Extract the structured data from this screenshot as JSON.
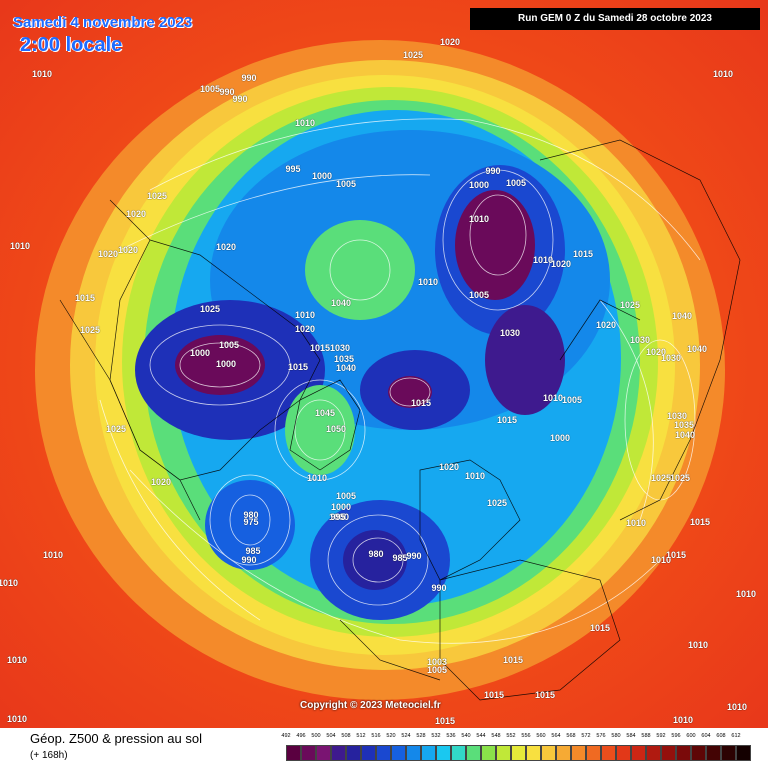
{
  "header": {
    "date": "Samedi 4 novembre 2023",
    "local_time": "2:00 locale",
    "run": "Run GEM 0 Z du Samedi 28 octobre 2023"
  },
  "copyright": "Copyright © 2023 Meteociel.fr",
  "footer": {
    "title": "Géop. Z500 & pression au sol",
    "forecast_hour": "(+ 168h)"
  },
  "legend": {
    "labels": [
      "492",
      "496",
      "500",
      "504",
      "508",
      "512",
      "516",
      "520",
      "524",
      "528",
      "532",
      "536",
      "540",
      "544",
      "548",
      "552",
      "556",
      "560",
      "564",
      "568",
      "572",
      "576",
      "580",
      "584",
      "588",
      "592",
      "596",
      "600",
      "604",
      "608",
      "612"
    ],
    "colors": [
      "#5a0040",
      "#6a0a5a",
      "#7a1472",
      "#3e1a8e",
      "#26229e",
      "#1e30b8",
      "#1a48d0",
      "#1660e0",
      "#1488ea",
      "#16a8f0",
      "#1ac8f0",
      "#32d8c8",
      "#5ade7a",
      "#8ae24a",
      "#c0e838",
      "#e6ea3a",
      "#f8e040",
      "#f8c83c",
      "#f6aa34",
      "#f48a2a",
      "#f06a22",
      "#ec4e1c",
      "#e23818",
      "#cc2614",
      "#b01a10",
      "#94100c",
      "#7a0a0a",
      "#5e0606",
      "#440404",
      "#2c0202",
      "#140000"
    ]
  },
  "isobar_labels": [
    "1020",
    "1025",
    "1010",
    "1010",
    "990",
    "1005",
    "990",
    "990",
    "1010",
    "995",
    "1000",
    "1005",
    "990",
    "1005",
    "1000",
    "1010",
    "1015",
    "1025",
    "1020",
    "1010",
    "1020",
    "1020",
    "1025",
    "1010",
    "1020",
    "1010",
    "1015",
    "1020",
    "1040",
    "1010",
    "1005",
    "1025",
    "1020",
    "1040",
    "1025",
    "1000",
    "1005",
    "1000",
    "1020",
    "1015",
    "1030",
    "1030",
    "1035",
    "1040",
    "1030",
    "1020",
    "1040",
    "1030",
    "1015",
    "1015",
    "1010",
    "1005",
    "1045",
    "1050",
    "1000",
    "1025",
    "1030",
    "1035",
    "1040",
    "1020",
    "1015",
    "1005",
    "1010",
    "1000",
    "1020",
    "1010",
    "1000",
    "1025",
    "1025",
    "980",
    "975",
    "995",
    "1025",
    "985",
    "990",
    "980",
    "985",
    "990",
    "1010",
    "1015",
    "1010",
    "1015",
    "990",
    "1010",
    "1010",
    "1010",
    "1010",
    "1003",
    "1005",
    "1015",
    "1010",
    "1015",
    "1015",
    "1015",
    "1010",
    "1015",
    "1010",
    "1010"
  ],
  "icons": {
    "map": "geopotential-map"
  }
}
